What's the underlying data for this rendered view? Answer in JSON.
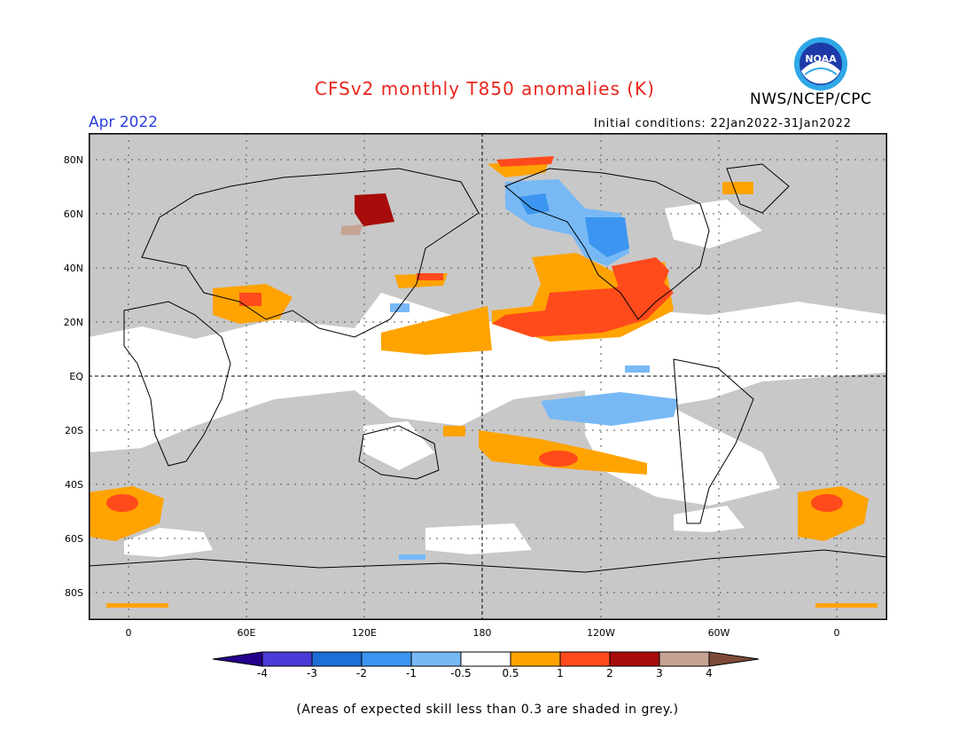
{
  "title": "CFSv2 monthly T850 anomalies (K)",
  "organization": "NWS/NCEP/CPC",
  "logo_text": "NOAA",
  "period": "Apr 2022",
  "initial_conditions": "Initial conditions: 22Jan2022-31Jan2022",
  "lat_labels": [
    "80N",
    "60N",
    "40N",
    "20N",
    "EQ",
    "20S",
    "40S",
    "60S",
    "80S"
  ],
  "lon_labels": [
    "0",
    "60E",
    "120E",
    "180",
    "120W",
    "60W",
    "0"
  ],
  "colorbar": {
    "labels": [
      "-4",
      "-3",
      "-2",
      "-1",
      "-0.5",
      "0.5",
      "1",
      "2",
      "3",
      "4"
    ],
    "colors": [
      "#24008c",
      "#4a3cd6",
      "#1e6ed8",
      "#3c95f0",
      "#78b9f5",
      "#ffffff",
      "#ffa300",
      "#ff4a1b",
      "#a70c0a",
      "#c7a393",
      "#7e4a3a"
    ]
  },
  "skill_mask_color": "#c8c8c8",
  "footnote": "(Areas of expected skill less than 0.3 are shaded in grey.)"
}
